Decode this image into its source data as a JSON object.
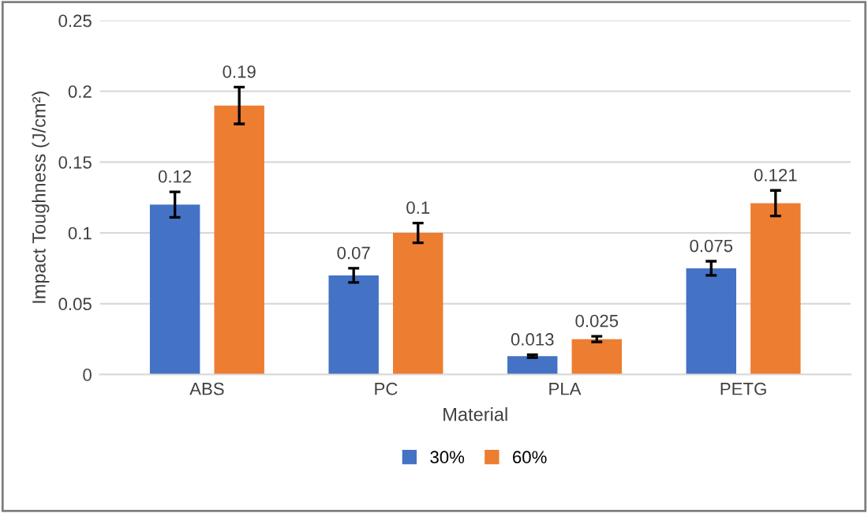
{
  "chart_data": {
    "type": "bar",
    "xlabel": "Material",
    "ylabel": "Impact Toughness (J/cm²)",
    "categories": [
      "ABS",
      "PC",
      "PLA",
      "PETG"
    ],
    "series": [
      {
        "name": "30%",
        "color": "#4472c4",
        "values": [
          0.12,
          0.07,
          0.013,
          0.075
        ],
        "errors": [
          0.009,
          0.005,
          0.001,
          0.005
        ],
        "value_labels": [
          "0.12",
          "0.07",
          "0.013",
          "0.075"
        ]
      },
      {
        "name": "60%",
        "color": "#ed7d31",
        "values": [
          0.19,
          0.1,
          0.025,
          0.121
        ],
        "errors": [
          0.013,
          0.007,
          0.002,
          0.009
        ],
        "value_labels": [
          "0.19",
          "0.1",
          "0.025",
          "0.121"
        ]
      }
    ],
    "ylim": [
      0,
      0.25
    ],
    "yticks": [
      0,
      0.05,
      0.1,
      0.15,
      0.2,
      0.25
    ],
    "grid": "y",
    "legend": "bottom"
  }
}
